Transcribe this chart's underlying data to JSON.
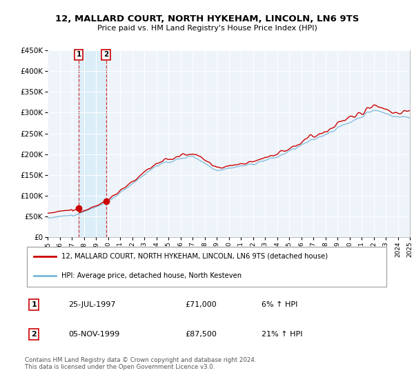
{
  "title": "12, MALLARD COURT, NORTH HYKEHAM, LINCOLN, LN6 9TS",
  "subtitle": "Price paid vs. HM Land Registry's House Price Index (HPI)",
  "legend_line1": "12, MALLARD COURT, NORTH HYKEHAM, LINCOLN, LN6 9TS (detached house)",
  "legend_line2": "HPI: Average price, detached house, North Kesteven",
  "annotation1_label": "1",
  "annotation1_date": "25-JUL-1997",
  "annotation1_price": "£71,000",
  "annotation1_hpi": "6% ↑ HPI",
  "annotation2_label": "2",
  "annotation2_date": "05-NOV-1999",
  "annotation2_price": "£87,500",
  "annotation2_hpi": "21% ↑ HPI",
  "footer": "Contains HM Land Registry data © Crown copyright and database right 2024.\nThis data is licensed under the Open Government Licence v3.0.",
  "sale1_year": 1997.57,
  "sale1_value": 71000,
  "sale2_year": 1999.84,
  "sale2_value": 87500,
  "hpi_color": "#7bb8d8",
  "price_color": "#cc0000",
  "dashed_color": "#cc0000",
  "span_color": "#dceef8",
  "plot_bg": "#eef4fa",
  "ylim": [
    0,
    450000
  ],
  "xlim_start": 1995,
  "xlim_end": 2025
}
